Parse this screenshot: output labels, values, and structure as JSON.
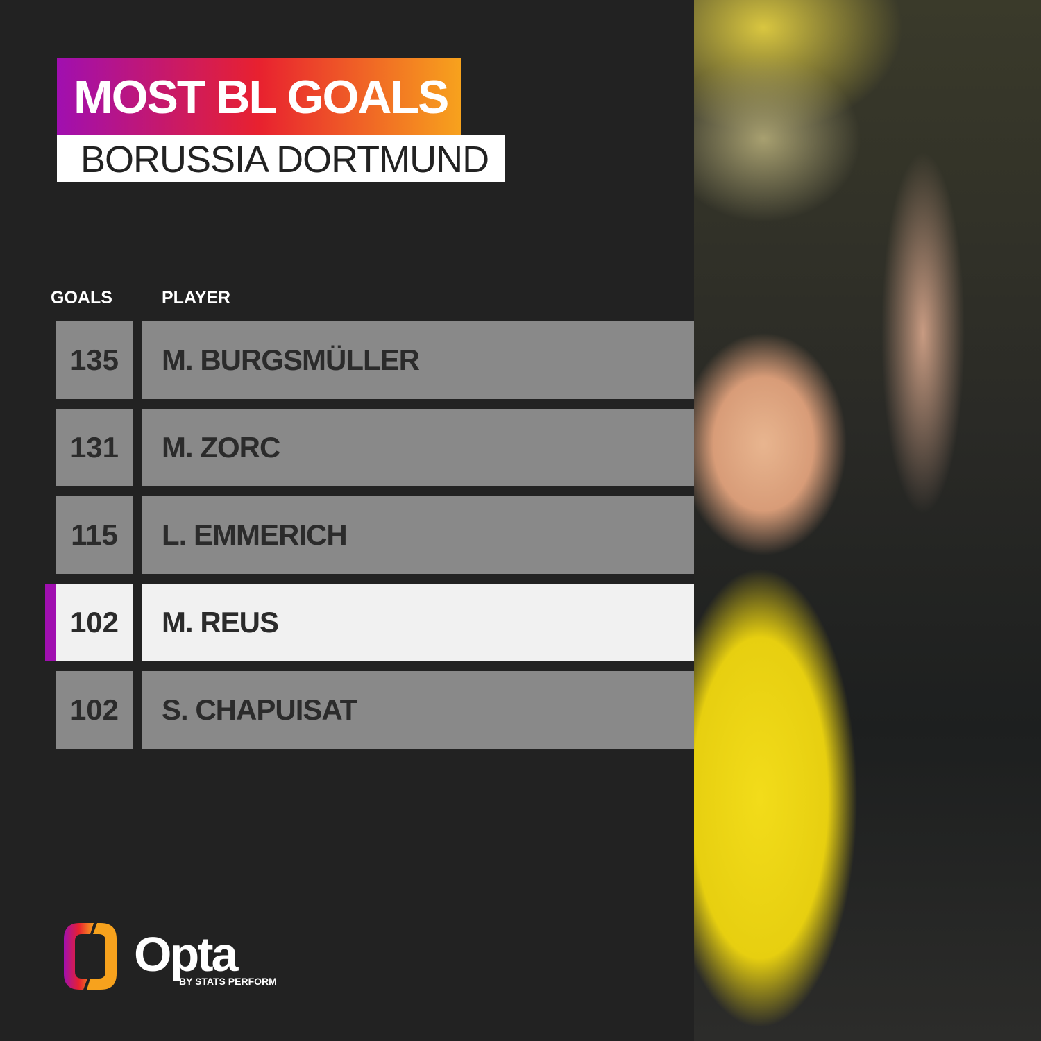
{
  "header": {
    "title": "MOST BL GOALS",
    "subtitle": "BORUSSIA DORTMUND"
  },
  "table": {
    "columns": [
      "GOALS",
      "PLAYER"
    ],
    "rows": [
      {
        "goals": "135",
        "player": "M. BURGSMÜLLER",
        "highlighted": false
      },
      {
        "goals": "131",
        "player": "M. ZORC",
        "highlighted": false
      },
      {
        "goals": "115",
        "player": "L. EMMERICH",
        "highlighted": false
      },
      {
        "goals": "102",
        "player": "M. REUS",
        "highlighted": true
      },
      {
        "goals": "102",
        "player": "S. CHAPUISAT",
        "highlighted": false
      }
    ]
  },
  "brand": {
    "name": "Opta",
    "tagline": "BY STATS PERFORM"
  },
  "colors": {
    "background": "#222222",
    "accent_start": "#a00fb0",
    "accent_mid": "#e8212f",
    "accent_end": "#f7a21d",
    "row": "#898989",
    "row_highlight": "#f1f1f1"
  }
}
